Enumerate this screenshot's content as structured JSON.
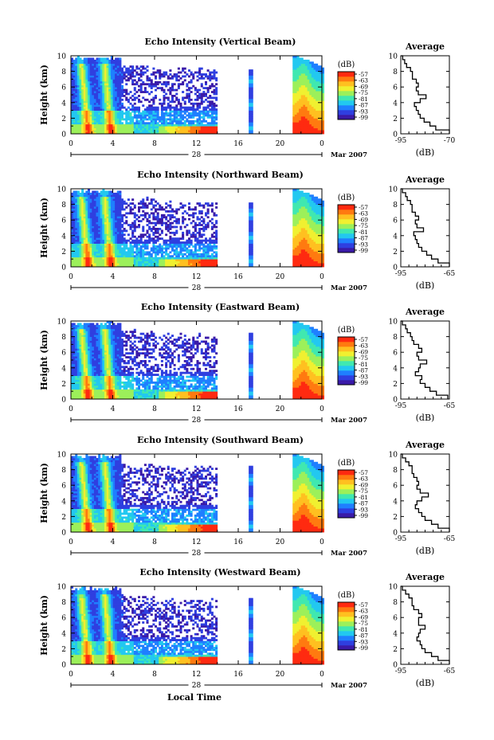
{
  "figure": {
    "colorbar_unit": "(dB)",
    "colorbar_ticks": [
      "-57",
      "-63",
      "-69",
      "-75",
      "-81",
      "-87",
      "-93",
      "-99"
    ],
    "colorscale": [
      "#3a1aa8",
      "#2f3fe0",
      "#1f7fff",
      "#22c8f0",
      "#40e8b0",
      "#9cf05a",
      "#f0f030",
      "#ffc020",
      "#ff7a10",
      "#ff2a10"
    ],
    "xlabel": "Local Time",
    "date_day": "28",
    "date_label": "Mar 2007",
    "avg_title": "Average",
    "avg_xlabel": "(dB)"
  },
  "chart_data": [
    {
      "type": "heatmap",
      "title": "Echo Intensity (Vertical Beam)",
      "ylabel": "Height (km)",
      "xlim": [
        0,
        24
      ],
      "ylim": [
        0,
        10
      ],
      "x_ticks": [
        "0",
        "4",
        "8",
        "12",
        "16",
        "20",
        "0"
      ],
      "y_ticks": [
        "0",
        "2",
        "4",
        "6",
        "8",
        "10"
      ],
      "clim": [
        -99,
        -57
      ],
      "profile": {
        "title": "Average",
        "xlabel": "(dB)",
        "x_ticks": [
          "-95",
          "-70"
        ],
        "xlim": [
          -95,
          -70
        ],
        "height": [
          0,
          0.5,
          1,
          1.5,
          2,
          2.5,
          3,
          3.5,
          4,
          4.5,
          5,
          5.5,
          6,
          6.5,
          7,
          7.5,
          8,
          8.5,
          9,
          9.5,
          10
        ],
        "values": [
          -70,
          -77,
          -80,
          -83,
          -85,
          -86,
          -87,
          -88,
          -85,
          -82,
          -86,
          -87,
          -86,
          -87,
          -89,
          -89,
          -90,
          -92,
          -93,
          -94,
          -95
        ]
      }
    },
    {
      "type": "heatmap",
      "title": "Echo Intensity (Northward Beam)",
      "ylabel": "Height (km)",
      "xlim": [
        0,
        24
      ],
      "ylim": [
        0,
        10
      ],
      "x_ticks": [
        "0",
        "4",
        "8",
        "12",
        "16",
        "20",
        "0"
      ],
      "y_ticks": [
        "0",
        "2",
        "4",
        "6",
        "8",
        "10"
      ],
      "clim": [
        -99,
        -57
      ],
      "profile": {
        "title": "Average",
        "xlabel": "(dB)",
        "x_ticks": [
          "-95",
          "-65"
        ],
        "xlim": [
          -95,
          -65
        ],
        "height": [
          0,
          0.5,
          1,
          1.5,
          2,
          2.5,
          3,
          3.5,
          4,
          4.5,
          5,
          5.5,
          6,
          6.5,
          7,
          7.5,
          8,
          8.5,
          9,
          9.5,
          10
        ],
        "values": [
          -65,
          -72,
          -76,
          -79,
          -82,
          -84,
          -85,
          -86,
          -87,
          -81,
          -85,
          -86,
          -84,
          -86,
          -88,
          -88,
          -89,
          -91,
          -92,
          -94,
          -95
        ]
      }
    },
    {
      "type": "heatmap",
      "title": "Echo Intensity (Eastward Beam)",
      "ylabel": "Height (km)",
      "xlim": [
        0,
        24
      ],
      "ylim": [
        0,
        10
      ],
      "x_ticks": [
        "0",
        "4",
        "8",
        "12",
        "16",
        "20",
        "0"
      ],
      "y_ticks": [
        "0",
        "2",
        "4",
        "6",
        "8",
        "10"
      ],
      "clim": [
        -99,
        -57
      ],
      "profile": {
        "title": "Average",
        "xlabel": "(dB)",
        "x_ticks": [
          "-95",
          "-65"
        ],
        "xlim": [
          -95,
          -65
        ],
        "height": [
          0,
          0.5,
          1,
          1.5,
          2,
          2.5,
          3,
          3.5,
          4,
          4.5,
          5,
          5.5,
          6,
          6.5,
          7,
          7.5,
          8,
          8.5,
          9,
          9.5,
          10
        ],
        "values": [
          -66,
          -73,
          -77,
          -80,
          -83,
          -82,
          -86,
          -84,
          -83,
          -79,
          -84,
          -85,
          -82,
          -84,
          -87,
          -88,
          -89,
          -91,
          -92,
          -94,
          -95
        ]
      }
    },
    {
      "type": "heatmap",
      "title": "Echo Intensity (Southward Beam)",
      "ylabel": "Height (km)",
      "xlim": [
        0,
        24
      ],
      "ylim": [
        0,
        10
      ],
      "x_ticks": [
        "0",
        "4",
        "8",
        "12",
        "16",
        "20",
        "0"
      ],
      "y_ticks": [
        "0",
        "2",
        "4",
        "6",
        "8",
        "10"
      ],
      "clim": [
        -99,
        -57
      ],
      "profile": {
        "title": "Average",
        "xlabel": "(dB)",
        "x_ticks": [
          "-95",
          "-65"
        ],
        "xlim": [
          -95,
          -65
        ],
        "height": [
          0,
          0.5,
          1,
          1.5,
          2,
          2.5,
          3,
          3.5,
          4,
          4.5,
          5,
          5.5,
          6,
          6.5,
          7,
          7.5,
          8,
          8.5,
          9,
          9.5,
          10
        ],
        "values": [
          -65,
          -72,
          -76,
          -80,
          -82,
          -84,
          -86,
          -85,
          -82,
          -78,
          -83,
          -85,
          -84,
          -85,
          -87,
          -88,
          -88,
          -90,
          -92,
          -94,
          -95
        ]
      }
    },
    {
      "type": "heatmap",
      "title": "Echo Intensity (Westward Beam)",
      "ylabel": "Height (km)",
      "xlim": [
        0,
        24
      ],
      "ylim": [
        0,
        10
      ],
      "x_ticks": [
        "0",
        "4",
        "8",
        "12",
        "16",
        "20",
        "0"
      ],
      "y_ticks": [
        "0",
        "2",
        "4",
        "6",
        "8",
        "10"
      ],
      "clim": [
        -99,
        -57
      ],
      "profile": {
        "title": "Average",
        "xlabel": "(dB)",
        "x_ticks": [
          "-95",
          "-65"
        ],
        "xlim": [
          -95,
          -65
        ],
        "height": [
          0,
          0.5,
          1,
          1.5,
          2,
          2.5,
          3,
          3.5,
          4,
          4.5,
          5,
          5.5,
          6,
          6.5,
          7,
          7.5,
          8,
          8.5,
          9,
          9.5,
          10
        ],
        "values": [
          -65,
          -72,
          -76,
          -80,
          -82,
          -83,
          -85,
          -84,
          -83,
          -80,
          -84,
          -84,
          -82,
          -84,
          -87,
          -88,
          -88,
          -90,
          -92,
          -94,
          -95
        ]
      }
    }
  ]
}
